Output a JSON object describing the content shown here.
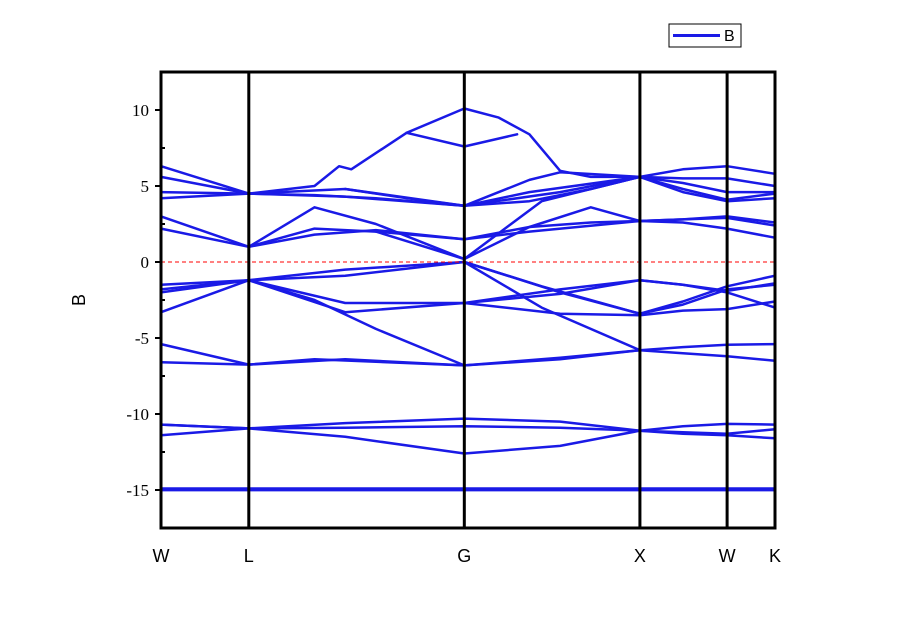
{
  "chart_data": {
    "type": "line",
    "title": "",
    "xlabel": "",
    "ylabel": "B",
    "ylim": [
      -17.5,
      12.5
    ],
    "yticks": [
      10,
      5,
      0,
      -5,
      -10,
      -15
    ],
    "ytick_labels": [
      "10",
      "5",
      "0",
      "-5",
      "-10",
      "-15"
    ],
    "xlim": [
      0,
      1
    ],
    "k_points": [
      {
        "label": "W",
        "x": 0.0
      },
      {
        "label": "L",
        "x": 0.143
      },
      {
        "label": "G",
        "x": 0.494
      },
      {
        "label": "X",
        "x": 0.78
      },
      {
        "label": "W",
        "x": 0.922
      },
      {
        "label": "K",
        "x": 1.0
      }
    ],
    "fermi_level": 0,
    "legend": {
      "position": "top-right",
      "entries": [
        "B"
      ]
    },
    "colors": {
      "bands": "#1a1ae6",
      "fermi": "#ff0000",
      "axes": "#000000"
    },
    "series": [
      {
        "values": [
          [
            0,
            -15.0
          ],
          [
            1,
            -15.0
          ]
        ]
      },
      {
        "values": [
          [
            0,
            -15.0
          ],
          [
            1,
            -15.0
          ]
        ]
      },
      {
        "values": [
          [
            0,
            -14.9
          ],
          [
            1,
            -14.9
          ]
        ]
      },
      {
        "values": [
          [
            0,
            -11.4
          ],
          [
            0.143,
            -10.95
          ],
          [
            0.3,
            -10.6
          ],
          [
            0.494,
            -10.3
          ],
          [
            0.65,
            -10.5
          ],
          [
            0.78,
            -11.1
          ],
          [
            0.85,
            -10.8
          ],
          [
            0.922,
            -10.65
          ],
          [
            1,
            -10.7
          ]
        ]
      },
      {
        "values": [
          [
            0,
            -10.7
          ],
          [
            0.143,
            -10.95
          ],
          [
            0.3,
            -11.5
          ],
          [
            0.494,
            -12.6
          ],
          [
            0.65,
            -12.1
          ],
          [
            0.78,
            -11.1
          ],
          [
            0.85,
            -11.3
          ],
          [
            0.922,
            -11.4
          ],
          [
            1,
            -11.6
          ]
        ]
      },
      {
        "values": [
          [
            0,
            -10.7
          ],
          [
            0.143,
            -10.95
          ],
          [
            0.3,
            -10.9
          ],
          [
            0.494,
            -10.8
          ],
          [
            0.65,
            -10.9
          ],
          [
            0.78,
            -11.1
          ],
          [
            0.85,
            -11.2
          ],
          [
            0.922,
            -11.3
          ],
          [
            1,
            -11.0
          ]
        ]
      },
      {
        "values": [
          [
            0,
            -6.6
          ],
          [
            0.143,
            -6.75
          ],
          [
            0.3,
            -6.4
          ],
          [
            0.494,
            -6.8
          ],
          [
            0.65,
            -6.3
          ],
          [
            0.78,
            -5.8
          ],
          [
            0.85,
            -5.6
          ],
          [
            0.922,
            -5.45
          ],
          [
            1,
            -5.4
          ]
        ]
      },
      {
        "values": [
          [
            0,
            -5.4
          ],
          [
            0.143,
            -6.75
          ],
          [
            0.25,
            -6.4
          ],
          [
            0.494,
            -6.8
          ],
          [
            0.65,
            -6.4
          ],
          [
            0.78,
            -5.8
          ],
          [
            0.85,
            -6.0
          ],
          [
            0.922,
            -6.2
          ],
          [
            1,
            -6.5
          ]
        ]
      },
      {
        "values": [
          [
            0,
            -3.3
          ],
          [
            0.143,
            -1.2
          ],
          [
            0.25,
            -2.5
          ],
          [
            0.35,
            -4.4
          ],
          [
            0.494,
            -6.8
          ]
        ]
      },
      {
        "values": [
          [
            0,
            -1.5
          ],
          [
            0.143,
            -1.2
          ],
          [
            0.3,
            -2.7
          ],
          [
            0.494,
            -2.7
          ],
          [
            0.65,
            -3.4
          ],
          [
            0.78,
            -3.5
          ],
          [
            0.85,
            -3.2
          ],
          [
            0.922,
            -3.1
          ],
          [
            1,
            -2.6
          ]
        ]
      },
      {
        "values": [
          [
            0,
            -2.0
          ],
          [
            0.143,
            -1.2
          ],
          [
            0.3,
            -3.3
          ],
          [
            0.494,
            -2.7
          ],
          [
            0.65,
            -2.1
          ],
          [
            0.78,
            -1.2
          ],
          [
            0.85,
            -1.5
          ],
          [
            0.922,
            -2.0
          ],
          [
            1,
            -3.0
          ]
        ]
      },
      {
        "values": [
          [
            0,
            -1.8
          ],
          [
            0.143,
            -1.2
          ],
          [
            0.3,
            -0.9
          ],
          [
            0.494,
            0.0
          ],
          [
            0.62,
            -3.0
          ],
          [
            0.78,
            -5.8
          ]
        ]
      },
      {
        "values": [
          [
            0.143,
            -1.2
          ],
          [
            0.3,
            -0.5
          ],
          [
            0.494,
            0.0
          ],
          [
            0.62,
            -1.6
          ],
          [
            0.78,
            -3.4
          ],
          [
            0.85,
            -2.8
          ],
          [
            0.922,
            -1.8
          ],
          [
            1,
            -1.5
          ]
        ]
      },
      {
        "values": [
          [
            0.494,
            0.0
          ],
          [
            0.65,
            -2.0
          ],
          [
            0.78,
            -3.4
          ],
          [
            0.85,
            -2.6
          ],
          [
            0.922,
            -1.6
          ],
          [
            1,
            -0.9
          ]
        ]
      },
      {
        "values": [
          [
            0.494,
            -2.7
          ],
          [
            0.65,
            -1.8
          ],
          [
            0.78,
            -1.2
          ],
          [
            0.85,
            -1.5
          ],
          [
            0.922,
            -1.9
          ],
          [
            1,
            -1.4
          ]
        ]
      },
      {
        "values": [
          [
            0,
            3.0
          ],
          [
            0.143,
            1.0
          ],
          [
            0.25,
            1.8
          ],
          [
            0.35,
            2.1
          ],
          [
            0.494,
            1.5
          ],
          [
            0.6,
            2.3
          ],
          [
            0.7,
            2.6
          ],
          [
            0.78,
            2.7
          ],
          [
            0.85,
            2.8
          ],
          [
            0.922,
            2.9
          ],
          [
            1,
            2.4
          ]
        ]
      },
      {
        "values": [
          [
            0,
            2.2
          ],
          [
            0.143,
            1.0
          ],
          [
            0.25,
            2.2
          ],
          [
            0.35,
            2.0
          ],
          [
            0.494,
            1.5
          ],
          [
            0.6,
            2.0
          ],
          [
            0.78,
            2.7
          ],
          [
            0.85,
            2.6
          ],
          [
            0.922,
            2.2
          ],
          [
            1,
            1.6
          ]
        ]
      },
      {
        "values": [
          [
            0.143,
            1.0
          ],
          [
            0.25,
            3.6
          ],
          [
            0.35,
            2.5
          ],
          [
            0.494,
            0.2
          ],
          [
            0.6,
            2.3
          ],
          [
            0.7,
            3.6
          ],
          [
            0.78,
            2.7
          ],
          [
            0.85,
            2.8
          ],
          [
            0.922,
            3.0
          ],
          [
            1,
            2.6
          ]
        ]
      },
      {
        "values": [
          [
            0.35,
            2.0
          ],
          [
            0.494,
            0.2
          ],
          [
            0.62,
            4.0
          ],
          [
            0.78,
            5.6
          ]
        ]
      },
      {
        "values": [
          [
            0,
            4.2
          ],
          [
            0.143,
            4.5
          ],
          [
            0.25,
            4.4
          ],
          [
            0.35,
            4.2
          ],
          [
            0.494,
            3.7
          ],
          [
            0.6,
            4.0
          ],
          [
            0.7,
            4.8
          ],
          [
            0.78,
            5.6
          ],
          [
            0.85,
            4.8
          ],
          [
            0.922,
            4.1
          ],
          [
            1,
            4.5
          ]
        ]
      },
      {
        "values": [
          [
            0,
            4.6
          ],
          [
            0.143,
            4.5
          ],
          [
            0.3,
            4.3
          ],
          [
            0.494,
            3.7
          ],
          [
            0.65,
            4.6
          ],
          [
            0.78,
            5.6
          ],
          [
            0.85,
            5.5
          ],
          [
            0.922,
            5.5
          ],
          [
            1,
            5.0
          ]
        ]
      },
      {
        "values": [
          [
            0,
            5.6
          ],
          [
            0.143,
            4.5
          ],
          [
            0.3,
            4.8
          ],
          [
            0.494,
            3.7
          ],
          [
            0.6,
            4.6
          ],
          [
            0.78,
            5.6
          ],
          [
            0.85,
            4.6
          ],
          [
            0.922,
            4.0
          ],
          [
            1,
            4.2
          ]
        ]
      },
      {
        "values": [
          [
            0,
            6.3
          ],
          [
            0.143,
            4.5
          ],
          [
            0.25,
            5.0
          ],
          [
            0.29,
            6.3
          ],
          [
            0.31,
            6.1
          ],
          [
            0.4,
            8.5
          ],
          [
            0.494,
            10.1
          ],
          [
            0.55,
            9.5
          ],
          [
            0.6,
            8.4
          ],
          [
            0.65,
            6.0
          ],
          [
            0.7,
            5.6
          ],
          [
            0.78,
            5.6
          ],
          [
            0.85,
            6.1
          ],
          [
            0.922,
            6.3
          ],
          [
            1,
            5.8
          ]
        ]
      },
      {
        "values": [
          [
            0.4,
            8.5
          ],
          [
            0.494,
            7.6
          ],
          [
            0.58,
            8.4
          ]
        ]
      },
      {
        "values": [
          [
            0.3,
            4.8
          ],
          [
            0.4,
            4.2
          ],
          [
            0.494,
            3.7
          ],
          [
            0.6,
            5.4
          ],
          [
            0.65,
            5.9
          ],
          [
            0.78,
            5.6
          ],
          [
            0.85,
            5.2
          ],
          [
            0.922,
            4.6
          ],
          [
            1,
            4.6
          ]
        ]
      }
    ]
  }
}
